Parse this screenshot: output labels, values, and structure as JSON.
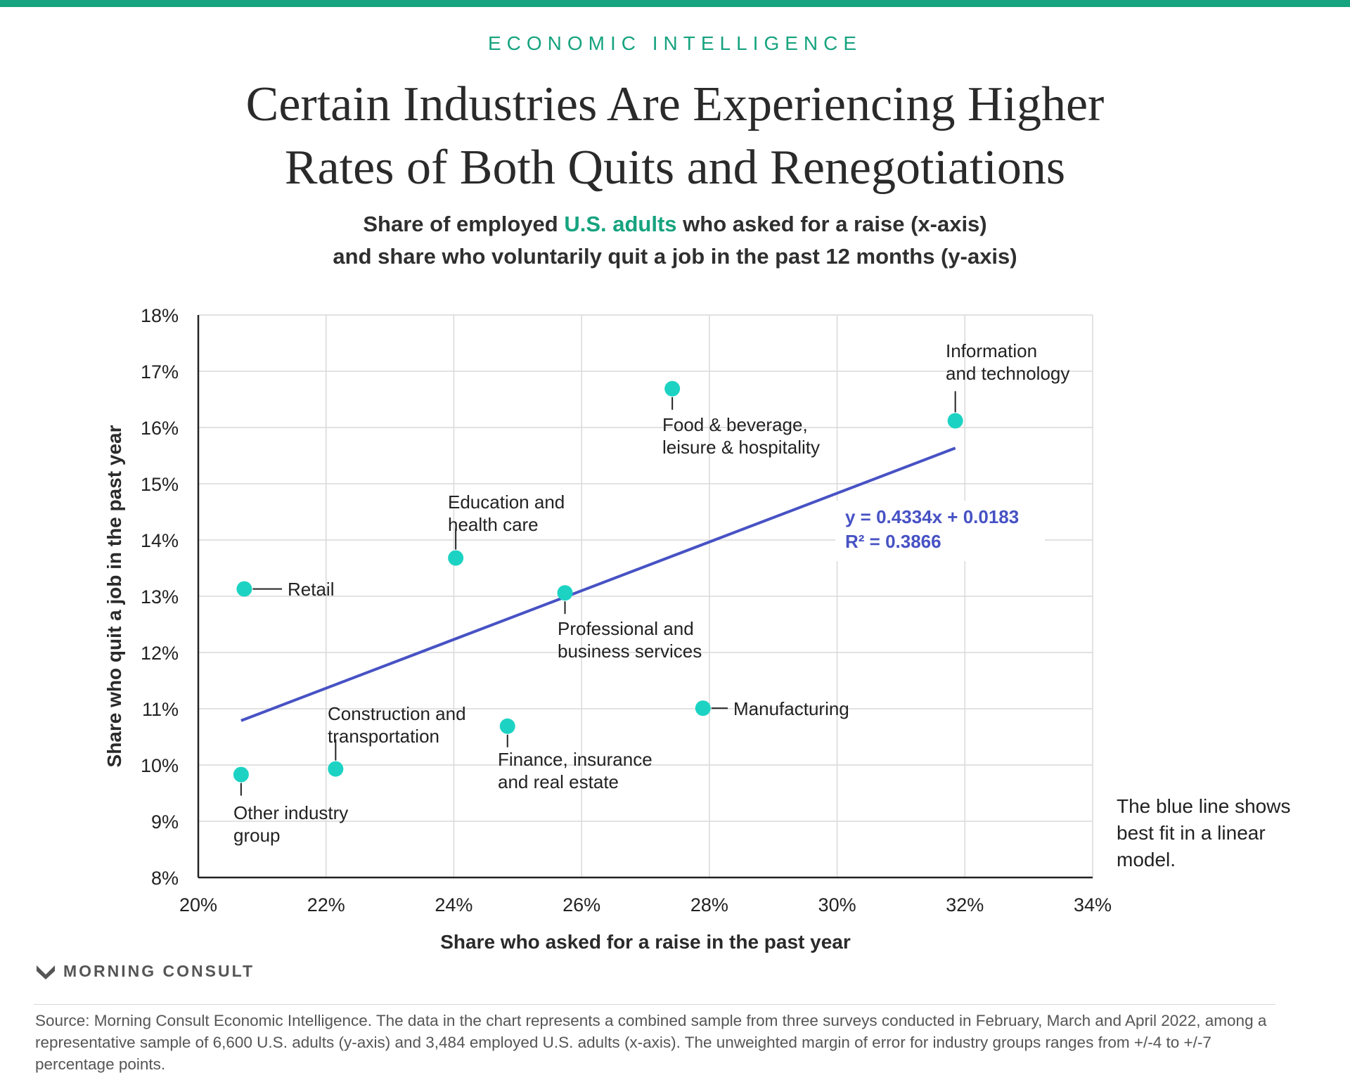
{
  "kicker": "ECONOMIC INTELLIGENCE",
  "title_line1": "Certain Industries Are Experiencing Higher",
  "title_line2": "Rates of Both Quits and Renegotiations",
  "subtitle": {
    "part1": "Share of employed ",
    "highlight": "U.S. adults",
    "part2": " who asked for a raise (x-axis)",
    "line2": "and share who voluntarily quit a job in the past 12 months (y-axis)"
  },
  "colors": {
    "accent": "#16a37f",
    "point": "#1cd3c3",
    "trendline": "#4752c4",
    "text": "#222222",
    "grid": "#d9d9d9"
  },
  "chart_data": {
    "type": "scatter",
    "xlabel": "Share who asked for a raise in the past year",
    "ylabel": "Share who quit a job in the past year",
    "xlim": [
      0.2,
      0.34
    ],
    "ylim": [
      0.08,
      0.18
    ],
    "x_ticks": [
      0.2,
      0.22,
      0.24,
      0.26,
      0.28,
      0.3,
      0.32,
      0.34
    ],
    "x_tick_labels": [
      "20%",
      "22%",
      "24%",
      "26%",
      "28%",
      "30%",
      "32%",
      "34%"
    ],
    "y_ticks": [
      0.08,
      0.09,
      0.1,
      0.11,
      0.12,
      0.13,
      0.14,
      0.15,
      0.16,
      0.17,
      0.18
    ],
    "y_tick_labels": [
      "8%",
      "9%",
      "10%",
      "11%",
      "12%",
      "13%",
      "14%",
      "15%",
      "16%",
      "17%",
      "18%"
    ],
    "grid": true,
    "points": [
      {
        "label": [
          "Information",
          "and technology"
        ],
        "x": 0.3185,
        "y": 0.1612
      },
      {
        "label": [
          "Food & beverage,",
          "leisure & hospitality"
        ],
        "x": 0.2742,
        "y": 0.1669
      },
      {
        "label": [
          "Education and",
          "health care"
        ],
        "x": 0.2403,
        "y": 0.1368
      },
      {
        "label": [
          "Retail"
        ],
        "x": 0.2072,
        "y": 0.1313
      },
      {
        "label": [
          "Professional and",
          "business services"
        ],
        "x": 0.2574,
        "y": 0.1306
      },
      {
        "label": [
          "Manufacturing"
        ],
        "x": 0.279,
        "y": 0.1101
      },
      {
        "label": [
          "Finance, insurance",
          "and real estate"
        ],
        "x": 0.2484,
        "y": 0.1069
      },
      {
        "label": [
          "Construction and",
          "transportation"
        ],
        "x": 0.2215,
        "y": 0.0993
      },
      {
        "label": [
          "Other industry",
          "group"
        ],
        "x": 0.2067,
        "y": 0.0983
      }
    ],
    "trendline": {
      "x_range": [
        0.2067,
        0.3185
      ],
      "slope": 0.4334,
      "intercept": 0.0183,
      "equation_label": "y = 0.4334x + 0.0183",
      "r2_label": "R² = 0.3866"
    }
  },
  "note": "The blue line shows best fit in a linear model.",
  "brand": "MORNING CONSULT",
  "source": "Source: Morning Consult Economic Intelligence. The data in the chart represents a combined sample from three surveys conducted in February, March and April 2022, among a representative sample of 6,600 U.S. adults (y-axis) and 3,484 employed U.S. adults (x-axis). The unweighted margin of error for industry groups ranges from +/-4 to +/-7 percentage points."
}
